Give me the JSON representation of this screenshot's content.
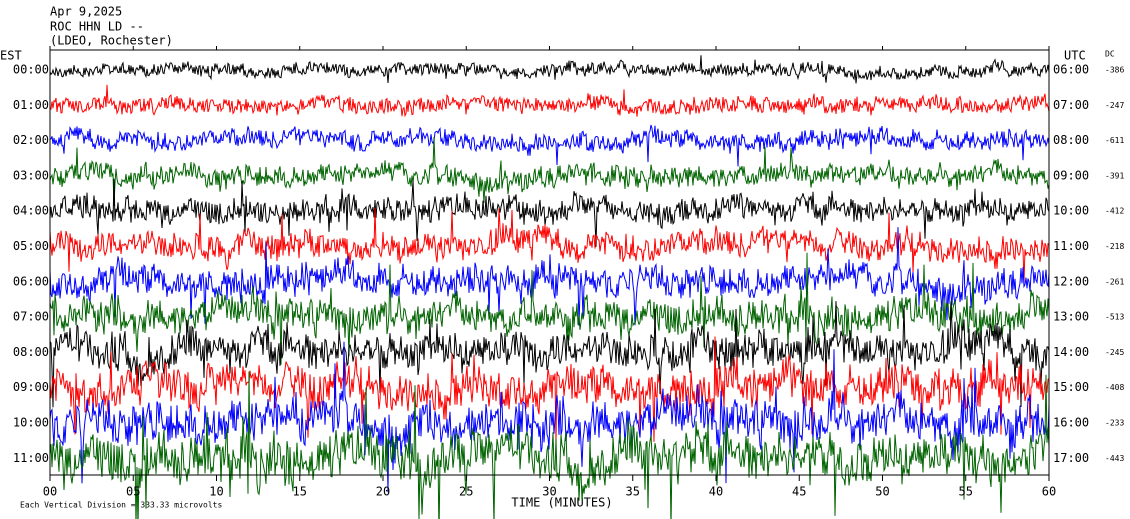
{
  "chart_data": {
    "type": "helicorder",
    "title": "Apr 9,2025",
    "station": "ROC HHN LD --",
    "network": "(LDEO, Rochester)",
    "left_axis_label": "EST",
    "right_axis_label": "UTC",
    "dc_label": "DC",
    "xlabel": "TIME (MINUTES)",
    "note": "Each Vertical Division = 333.33 microvolts",
    "xlim": [
      0,
      60
    ],
    "xticks": [
      {
        "value": 0,
        "label": "00"
      },
      {
        "value": 5,
        "label": "05"
      },
      10,
      15,
      20,
      25,
      30,
      35,
      40,
      45,
      50,
      55,
      60
    ],
    "rows": [
      {
        "est": "00:00",
        "utc": "06:00",
        "dc": -386,
        "color": "#000000"
      },
      {
        "est": "01:00",
        "utc": "07:00",
        "dc": -247,
        "color": "#ff0000"
      },
      {
        "est": "02:00",
        "utc": "08:00",
        "dc": -611,
        "color": "#0000ff"
      },
      {
        "est": "03:00",
        "utc": "09:00",
        "dc": -391,
        "color": "#006400"
      },
      {
        "est": "04:00",
        "utc": "10:00",
        "dc": -412,
        "color": "#000000"
      },
      {
        "est": "05:00",
        "utc": "11:00",
        "dc": -218,
        "color": "#ff0000"
      },
      {
        "est": "06:00",
        "utc": "12:00",
        "dc": -261,
        "color": "#0000ff"
      },
      {
        "est": "07:00",
        "utc": "13:00",
        "dc": -513,
        "color": "#006400"
      },
      {
        "est": "08:00",
        "utc": "14:00",
        "dc": -245,
        "color": "#000000"
      },
      {
        "est": "09:00",
        "utc": "15:00",
        "dc": -408,
        "color": "#ff0000"
      },
      {
        "est": "10:00",
        "utc": "16:00",
        "dc": -233,
        "color": "#0000ff"
      },
      {
        "est": "11:00",
        "utc": "17:00",
        "dc": -443,
        "color": "#006400"
      }
    ]
  }
}
